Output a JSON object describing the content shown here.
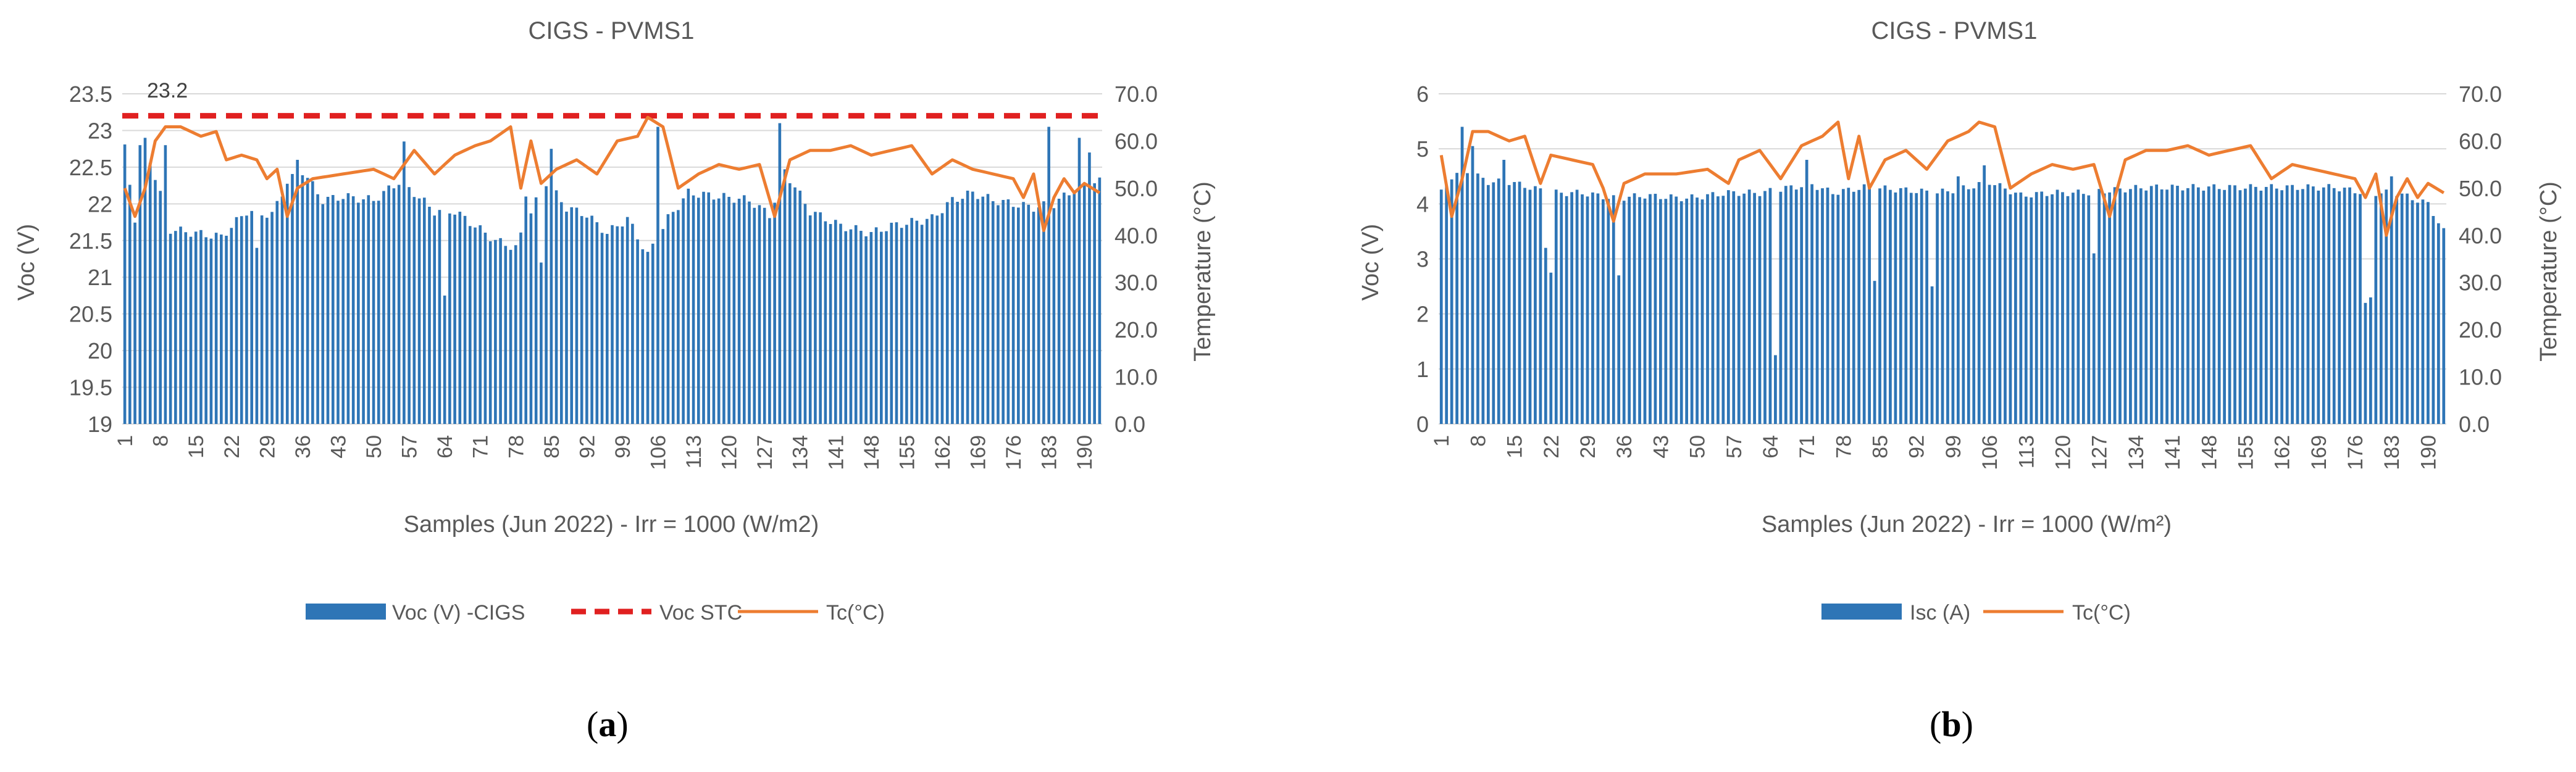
{
  "panels": {
    "a": {
      "label_open": "(",
      "label_letter": "a",
      "label_close": ")"
    },
    "b": {
      "label_open": "(",
      "label_letter": "b",
      "label_close": ")"
    }
  },
  "colors": {
    "bar": "#2e75b6",
    "line": "#ed7d31",
    "stc": "#e02020",
    "grid": "#d9d9d9",
    "text": "#595959"
  },
  "chart_data": [
    {
      "type": "bar",
      "title": "CIGS - PVMS1",
      "xlabel": "Samples (Jun 2022) - Irr = 1000 (W/m2)",
      "ylabel": "Voc (V)",
      "y2label": "Temperature (°C)",
      "ylim": [
        19,
        23.5
      ],
      "yticks": [
        "19",
        "19.5",
        "20",
        "20.5",
        "21",
        "21.5",
        "22",
        "22.5",
        "23",
        "23.5"
      ],
      "y2lim": [
        0,
        70
      ],
      "y2ticks": [
        "0.0",
        "10.0",
        "20.0",
        "30.0",
        "40.0",
        "50.0",
        "60.0",
        "70.0"
      ],
      "xticks": [
        "1",
        "8",
        "15",
        "22",
        "29",
        "36",
        "43",
        "50",
        "57",
        "64",
        "71",
        "78",
        "85",
        "92",
        "99",
        "106",
        "113",
        "120",
        "127",
        "134",
        "141",
        "148",
        "155",
        "162",
        "169",
        "176",
        "183",
        "190"
      ],
      "n_samples": 193,
      "annotation": "23.2",
      "stc_value": 23.2,
      "legend": [
        "Voc (V) -CIGS",
        "Voc STC",
        "Tc(°C)"
      ],
      "series": [
        {
          "name": "Voc (V) -CIGS",
          "kind": "bar",
          "anchors": [
            [
              1,
              22.75
            ],
            [
              3,
              21.8
            ],
            [
              6,
              22.6
            ],
            [
              10,
              21.65
            ],
            [
              15,
              21.6
            ],
            [
              20,
              21.55
            ],
            [
              25,
              21.9
            ],
            [
              30,
              21.85
            ],
            [
              33,
              22.3
            ],
            [
              36,
              22.45
            ],
            [
              40,
              22.05
            ],
            [
              44,
              22.1
            ],
            [
              50,
              22.05
            ],
            [
              55,
              22.3
            ],
            [
              58,
              22.15
            ],
            [
              62,
              21.9
            ],
            [
              66,
              21.9
            ],
            [
              70,
              21.7
            ],
            [
              74,
              21.5
            ],
            [
              78,
              21.4
            ],
            [
              81,
              21.9
            ],
            [
              84,
              22.3
            ],
            [
              88,
              21.95
            ],
            [
              92,
              21.85
            ],
            [
              96,
              21.6
            ],
            [
              100,
              21.8
            ],
            [
              104,
              21.3
            ],
            [
              108,
              21.8
            ],
            [
              112,
              22.15
            ],
            [
              118,
              22.1
            ],
            [
              124,
              22.05
            ],
            [
              128,
              21.85
            ],
            [
              131,
              22.45
            ],
            [
              136,
              21.9
            ],
            [
              142,
              21.7
            ],
            [
              148,
              21.6
            ],
            [
              152,
              21.7
            ],
            [
              156,
              21.75
            ],
            [
              160,
              21.8
            ],
            [
              164,
              22.05
            ],
            [
              168,
              22.15
            ],
            [
              172,
              22.05
            ],
            [
              176,
              22.0
            ],
            [
              180,
              21.95
            ],
            [
              184,
              22.0
            ],
            [
              188,
              22.2
            ],
            [
              192,
              22.3
            ]
          ],
          "spikes": [
            [
              4,
              22.8
            ],
            [
              5,
              22.9
            ],
            [
              9,
              22.8
            ],
            [
              27,
              21.4
            ],
            [
              35,
              22.6
            ],
            [
              56,
              22.85
            ],
            [
              64,
              20.75
            ],
            [
              80,
              22.1
            ],
            [
              83,
              21.2
            ],
            [
              85,
              22.75
            ],
            [
              106,
              23.05
            ],
            [
              130,
              23.1
            ],
            [
              183,
              23.05
            ],
            [
              189,
              22.9
            ],
            [
              191,
              22.7
            ]
          ]
        },
        {
          "name": "Tc(°C)",
          "kind": "line",
          "anchors": [
            [
              1,
              50
            ],
            [
              3,
              44
            ],
            [
              5,
              50
            ],
            [
              7,
              60
            ],
            [
              9,
              63
            ],
            [
              12,
              63
            ],
            [
              16,
              61
            ],
            [
              19,
              62
            ],
            [
              21,
              56
            ],
            [
              24,
              57
            ],
            [
              27,
              56
            ],
            [
              29,
              52
            ],
            [
              31,
              54
            ],
            [
              33,
              44
            ],
            [
              35,
              50
            ],
            [
              38,
              52
            ],
            [
              44,
              53
            ],
            [
              50,
              54
            ],
            [
              54,
              52
            ],
            [
              58,
              58
            ],
            [
              62,
              53
            ],
            [
              66,
              57
            ],
            [
              70,
              59
            ],
            [
              73,
              60
            ],
            [
              77,
              63
            ],
            [
              79,
              50
            ],
            [
              81,
              60
            ],
            [
              83,
              51
            ],
            [
              86,
              54
            ],
            [
              90,
              56
            ],
            [
              94,
              53
            ],
            [
              98,
              60
            ],
            [
              102,
              61
            ],
            [
              104,
              65
            ],
            [
              107,
              63
            ],
            [
              110,
              50
            ],
            [
              114,
              53
            ],
            [
              118,
              55
            ],
            [
              122,
              54
            ],
            [
              126,
              55
            ],
            [
              129,
              44
            ],
            [
              132,
              56
            ],
            [
              136,
              58
            ],
            [
              140,
              58
            ],
            [
              144,
              59
            ],
            [
              148,
              57
            ],
            [
              152,
              58
            ],
            [
              156,
              59
            ],
            [
              160,
              53
            ],
            [
              164,
              56
            ],
            [
              168,
              54
            ],
            [
              172,
              53
            ],
            [
              176,
              52
            ],
            [
              178,
              48
            ],
            [
              180,
              53
            ],
            [
              182,
              41
            ],
            [
              184,
              48
            ],
            [
              186,
              52
            ],
            [
              188,
              49
            ],
            [
              190,
              51
            ],
            [
              193,
              49
            ]
          ]
        },
        {
          "name": "Voc STC",
          "kind": "dashed-line",
          "values": [
            23.2
          ]
        }
      ]
    },
    {
      "type": "bar",
      "title": "CIGS - PVMS1",
      "xlabel": "Samples (Jun 2022) - Irr = 1000 (W/m²)",
      "ylabel": "Voc (V)",
      "y2label": "Temperature (°C)",
      "ylim": [
        0,
        6
      ],
      "yticks": [
        "0",
        "1",
        "2",
        "3",
        "4",
        "5",
        "6"
      ],
      "y2lim": [
        0,
        70
      ],
      "y2ticks": [
        "0.0",
        "10.0",
        "20.0",
        "30.0",
        "40.0",
        "50.0",
        "60.0",
        "70.0"
      ],
      "xticks": [
        "1",
        "8",
        "15",
        "22",
        "29",
        "36",
        "43",
        "50",
        "57",
        "64",
        "71",
        "78",
        "85",
        "92",
        "99",
        "106",
        "113",
        "120",
        "127",
        "134",
        "141",
        "148",
        "155",
        "162",
        "169",
        "176",
        "183",
        "190"
      ],
      "n_samples": 193,
      "legend": [
        "Isc (A)",
        "Tc(°C)"
      ],
      "series": [
        {
          "name": "Isc (A)",
          "kind": "bar",
          "anchors": [
            [
              1,
              4.2
            ],
            [
              3,
              4.5
            ],
            [
              6,
              4.6
            ],
            [
              10,
              4.4
            ],
            [
              14,
              4.4
            ],
            [
              18,
              4.3
            ],
            [
              22,
              4.2
            ],
            [
              28,
              4.2
            ],
            [
              34,
              4.1
            ],
            [
              40,
              4.15
            ],
            [
              48,
              4.1
            ],
            [
              56,
              4.2
            ],
            [
              62,
              4.2
            ],
            [
              68,
              4.3
            ],
            [
              72,
              4.35
            ],
            [
              76,
              4.2
            ],
            [
              82,
              4.3
            ],
            [
              90,
              4.25
            ],
            [
              96,
              4.2
            ],
            [
              102,
              4.3
            ],
            [
              106,
              4.4
            ],
            [
              112,
              4.15
            ],
            [
              118,
              4.2
            ],
            [
              124,
              4.2
            ],
            [
              130,
              4.25
            ],
            [
              136,
              4.3
            ],
            [
              142,
              4.3
            ],
            [
              148,
              4.3
            ],
            [
              154,
              4.3
            ],
            [
              160,
              4.3
            ],
            [
              166,
              4.3
            ],
            [
              172,
              4.3
            ],
            [
              178,
              4.2
            ],
            [
              184,
              4.2
            ],
            [
              190,
              4.0
            ],
            [
              193,
              3.5
            ]
          ],
          "spikes": [
            [
              5,
              5.4
            ],
            [
              7,
              5.05
            ],
            [
              13,
              4.8
            ],
            [
              21,
              3.2
            ],
            [
              22,
              2.75
            ],
            [
              35,
              2.7
            ],
            [
              65,
              1.25
            ],
            [
              71,
              4.8
            ],
            [
              84,
              2.6
            ],
            [
              95,
              2.5
            ],
            [
              100,
              4.5
            ],
            [
              105,
              4.7
            ],
            [
              126,
              3.1
            ],
            [
              178,
              2.2
            ],
            [
              179,
              2.3
            ],
            [
              183,
              4.5
            ]
          ]
        },
        {
          "name": "Tc(°C)",
          "kind": "line",
          "anchors": [
            [
              1,
              57
            ],
            [
              3,
              44
            ],
            [
              5,
              52
            ],
            [
              7,
              62
            ],
            [
              10,
              62
            ],
            [
              14,
              60
            ],
            [
              17,
              61
            ],
            [
              20,
              51
            ],
            [
              22,
              57
            ],
            [
              26,
              56
            ],
            [
              30,
              55
            ],
            [
              32,
              50
            ],
            [
              34,
              43
            ],
            [
              36,
              51
            ],
            [
              40,
              53
            ],
            [
              46,
              53
            ],
            [
              52,
              54
            ],
            [
              56,
              51
            ],
            [
              58,
              56
            ],
            [
              62,
              58
            ],
            [
              66,
              52
            ],
            [
              70,
              59
            ],
            [
              74,
              61
            ],
            [
              77,
              64
            ],
            [
              79,
              52
            ],
            [
              81,
              61
            ],
            [
              83,
              50
            ],
            [
              86,
              56
            ],
            [
              90,
              58
            ],
            [
              94,
              54
            ],
            [
              98,
              60
            ],
            [
              102,
              62
            ],
            [
              104,
              64
            ],
            [
              107,
              63
            ],
            [
              110,
              50
            ],
            [
              114,
              53
            ],
            [
              118,
              55
            ],
            [
              122,
              54
            ],
            [
              126,
              55
            ],
            [
              129,
              44
            ],
            [
              132,
              56
            ],
            [
              136,
              58
            ],
            [
              140,
              58
            ],
            [
              144,
              59
            ],
            [
              148,
              57
            ],
            [
              152,
              58
            ],
            [
              156,
              59
            ],
            [
              160,
              52
            ],
            [
              164,
              55
            ],
            [
              168,
              54
            ],
            [
              172,
              53
            ],
            [
              176,
              52
            ],
            [
              178,
              48
            ],
            [
              180,
              53
            ],
            [
              182,
              40
            ],
            [
              184,
              48
            ],
            [
              186,
              52
            ],
            [
              188,
              48
            ],
            [
              190,
              51
            ],
            [
              193,
              49
            ]
          ]
        }
      ]
    }
  ]
}
